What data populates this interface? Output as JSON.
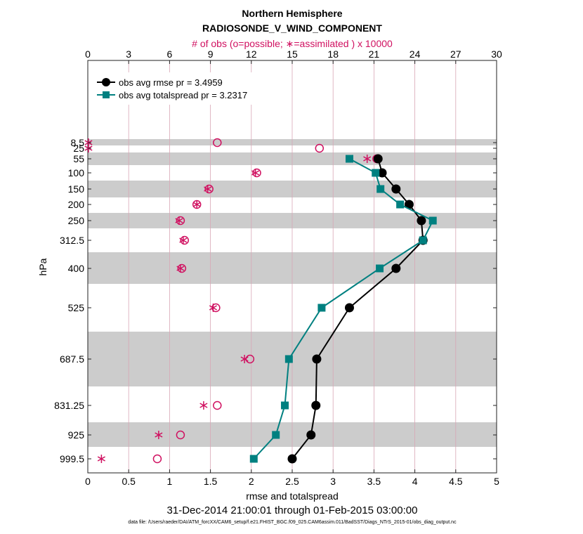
{
  "chart_data": {
    "type": "line",
    "title": "Northern Hemisphere",
    "subtitle": "RADIOSONDE_V_WIND_COMPONENT",
    "top_axis_label": "# of obs (o=possible; ∗=assimilated ) x 10000",
    "xlabel": "rmse and totalspread",
    "ylabel": "hPa",
    "date_range": "31-Dec-2014 21:00:01 through 01-Feb-2015 03:00:00",
    "data_file": "data file: /Users/raeder/DAI/ATM_forcXX/CAM6_setup/f.e21.FHIST_BGC.f09_025.CAM6assim.011/BadSST/Diags_NTrS_2015-01/obs_diag_output.nc",
    "xlim": [
      0,
      5
    ],
    "x_ticks": [
      "0",
      "0.5",
      "1",
      "1.5",
      "2",
      "2.5",
      "3",
      "3.5",
      "4",
      "4.5",
      "5"
    ],
    "top_xlim": [
      0,
      30
    ],
    "top_ticks": [
      "0",
      "3",
      "6",
      "9",
      "12",
      "15",
      "18",
      "21",
      "24",
      "27",
      "30"
    ],
    "levels": [
      "8.5",
      "25",
      "55",
      "100",
      "150",
      "200",
      "250",
      "312.5",
      "400",
      "525",
      "687.5",
      "831.25",
      "925",
      "999.5"
    ],
    "level_values": [
      8.5,
      25,
      55,
      100,
      150,
      200,
      250,
      312.5,
      400,
      525,
      687.5,
      831.25,
      925,
      999.5
    ],
    "legend": [
      {
        "label": "obs avg rmse pr = 3.4959",
        "color": "#000000",
        "marker": "circle"
      },
      {
        "label": "obs avg totalspread pr = 3.2317",
        "color": "#008080",
        "marker": "square"
      }
    ],
    "series": [
      {
        "name": "obs avg rmse",
        "color": "#000000",
        "points": [
          [
            3.55,
            55
          ],
          [
            3.6,
            100
          ],
          [
            3.77,
            150
          ],
          [
            3.93,
            200
          ],
          [
            4.08,
            250
          ],
          [
            4.1,
            312.5
          ],
          [
            3.77,
            400
          ],
          [
            3.2,
            525
          ],
          [
            2.8,
            687.5
          ],
          [
            2.79,
            831.25
          ],
          [
            2.73,
            925
          ],
          [
            2.5,
            999.5
          ]
        ]
      },
      {
        "name": "obs avg totalspread",
        "color": "#008080",
        "points": [
          [
            3.2,
            55
          ],
          [
            3.52,
            100
          ],
          [
            3.58,
            150
          ],
          [
            3.82,
            200
          ],
          [
            4.22,
            250
          ],
          [
            4.1,
            312.5
          ],
          [
            3.57,
            400
          ],
          [
            2.86,
            525
          ],
          [
            2.46,
            687.5
          ],
          [
            2.41,
            831.25
          ],
          [
            2.3,
            925
          ],
          [
            2.03,
            999.5
          ]
        ]
      }
    ],
    "obs_possible": [
      [
        9.5,
        8.5
      ],
      [
        17,
        25
      ],
      [
        21.2,
        55
      ],
      [
        12.4,
        100
      ],
      [
        8.9,
        150
      ],
      [
        8.0,
        200
      ],
      [
        6.8,
        250
      ],
      [
        7.1,
        312.5
      ],
      [
        6.9,
        400
      ],
      [
        9.4,
        525
      ],
      [
        11.9,
        687.5
      ],
      [
        9.5,
        831.25
      ],
      [
        6.8,
        925
      ],
      [
        5.1,
        999.5
      ]
    ],
    "obs_assimilated": [
      [
        0.05,
        8.5
      ],
      [
        0.05,
        25
      ],
      [
        20.5,
        55
      ],
      [
        12.3,
        100
      ],
      [
        8.8,
        150
      ],
      [
        8.0,
        200
      ],
      [
        6.7,
        250
      ],
      [
        7.0,
        312.5
      ],
      [
        6.8,
        400
      ],
      [
        9.2,
        525
      ],
      [
        11.5,
        687.5
      ],
      [
        8.5,
        831.25
      ],
      [
        5.2,
        925
      ],
      [
        1.0,
        999.5
      ]
    ],
    "colors": {
      "obs": "#D01060",
      "rmse": "#000000",
      "spread": "#008080",
      "band": "#cccccc",
      "grid": "#d8a6b6"
    }
  }
}
